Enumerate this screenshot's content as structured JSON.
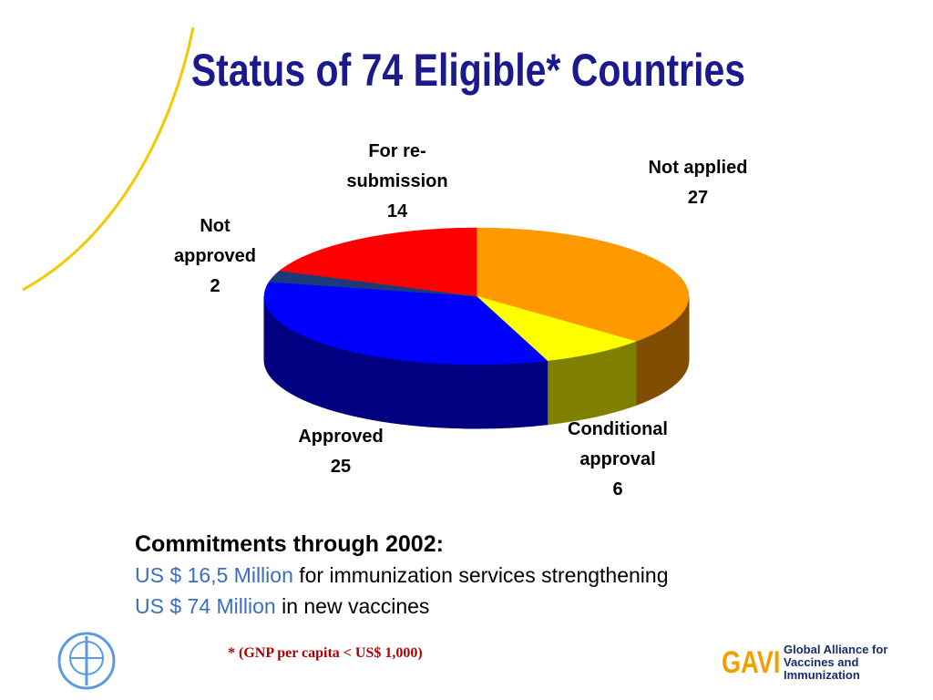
{
  "chart_data": {
    "type": "pie",
    "title": "Status of 74 Eligible* Countries",
    "categories": [
      "Not applied",
      "Conditional approval",
      "Approved",
      "Not approved",
      "For re-submission"
    ],
    "values": [
      27,
      6,
      25,
      2,
      14
    ],
    "colors": [
      "#ff9900",
      "#ffff00",
      "#0000ff",
      "#1a3a7a",
      "#ff0000"
    ]
  },
  "commitments": {
    "heading": "Commitments through 2002:",
    "lines": [
      {
        "amount": "US $ 16,5 Million",
        "text": "for immunization services strengthening"
      },
      {
        "amount": "US $ 74 Million",
        "text": "in new vaccines"
      }
    ]
  },
  "footnote": "* (GNP per capita < US$ 1,000)",
  "logo": {
    "name": "GAVI",
    "line1": "Global Alliance for",
    "line2": "Vaccines and Immunization"
  }
}
